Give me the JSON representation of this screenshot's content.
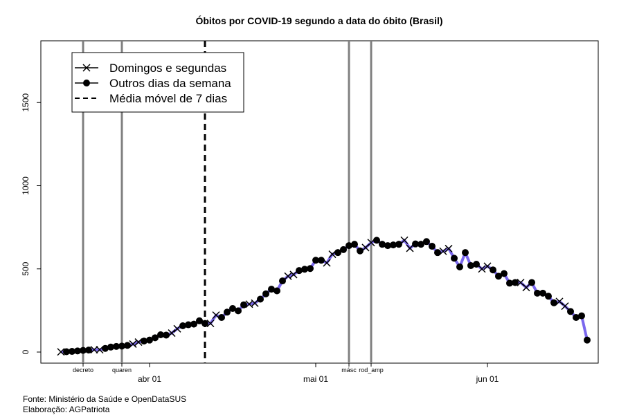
{
  "chart_data": {
    "type": "line",
    "title": "Óbitos por COVID-19 segundo a data do óbito (Brasil)",
    "xlabel": "",
    "ylabel": "",
    "ylim": [
      0,
      1800
    ],
    "yticks": [
      0,
      500,
      1000,
      1500
    ],
    "xlim": [
      "2020-03-10",
      "2020-06-16"
    ],
    "xticks": [
      {
        "date": "2020-04-01",
        "label": "abr 01"
      },
      {
        "date": "2020-05-01",
        "label": "mai 01"
      },
      {
        "date": "2020-06-01",
        "label": "jun 01"
      }
    ],
    "grid": false,
    "legend_position": "top-left",
    "legend": [
      {
        "label": "Domingos e segundas",
        "marker": "x"
      },
      {
        "label": "Outros dias da semana",
        "marker": "dot"
      },
      {
        "label": "Média móvel de 7 dias",
        "marker": "dashed"
      }
    ],
    "events": [
      {
        "date": "2020-03-20",
        "label": "decreto"
      },
      {
        "date": "2020-03-27",
        "label": "quaren"
      },
      {
        "date": "2020-05-07",
        "label": "másc"
      },
      {
        "date": "2020-05-11",
        "label": "rod_amp"
      }
    ],
    "dashed_vline_date": "2020-04-11",
    "series": [
      {
        "line_color": "#7b68ee",
        "points": [
          {
            "date": "2020-03-16",
            "value": 1,
            "marker": "x"
          },
          {
            "date": "2020-03-17",
            "value": 2,
            "marker": "dot"
          },
          {
            "date": "2020-03-18",
            "value": 4,
            "marker": "dot"
          },
          {
            "date": "2020-03-19",
            "value": 7,
            "marker": "dot"
          },
          {
            "date": "2020-03-20",
            "value": 10,
            "marker": "dot"
          },
          {
            "date": "2020-03-21",
            "value": 12,
            "marker": "dot"
          },
          {
            "date": "2020-03-22",
            "value": 14,
            "marker": "x"
          },
          {
            "date": "2020-03-23",
            "value": 14,
            "marker": "x"
          },
          {
            "date": "2020-03-24",
            "value": 22,
            "marker": "dot"
          },
          {
            "date": "2020-03-25",
            "value": 30,
            "marker": "dot"
          },
          {
            "date": "2020-03-26",
            "value": 34,
            "marker": "dot"
          },
          {
            "date": "2020-03-27",
            "value": 36,
            "marker": "dot"
          },
          {
            "date": "2020-03-28",
            "value": 40,
            "marker": "dot"
          },
          {
            "date": "2020-03-29",
            "value": 48,
            "marker": "x"
          },
          {
            "date": "2020-03-30",
            "value": 60,
            "marker": "x"
          },
          {
            "date": "2020-03-31",
            "value": 66,
            "marker": "dot"
          },
          {
            "date": "2020-04-01",
            "value": 72,
            "marker": "dot"
          },
          {
            "date": "2020-04-02",
            "value": 86,
            "marker": "dot"
          },
          {
            "date": "2020-04-03",
            "value": 104,
            "marker": "dot"
          },
          {
            "date": "2020-04-04",
            "value": 102,
            "marker": "dot"
          },
          {
            "date": "2020-04-05",
            "value": 114,
            "marker": "x"
          },
          {
            "date": "2020-04-06",
            "value": 140,
            "marker": "x"
          },
          {
            "date": "2020-04-07",
            "value": 158,
            "marker": "dot"
          },
          {
            "date": "2020-04-08",
            "value": 164,
            "marker": "dot"
          },
          {
            "date": "2020-04-09",
            "value": 168,
            "marker": "dot"
          },
          {
            "date": "2020-04-10",
            "value": 188,
            "marker": "dot"
          },
          {
            "date": "2020-04-11",
            "value": 172,
            "marker": "dot"
          },
          {
            "date": "2020-04-12",
            "value": 172,
            "marker": "x"
          },
          {
            "date": "2020-04-13",
            "value": 222,
            "marker": "x"
          },
          {
            "date": "2020-04-14",
            "value": 208,
            "marker": "dot"
          },
          {
            "date": "2020-04-15",
            "value": 240,
            "marker": "dot"
          },
          {
            "date": "2020-04-16",
            "value": 262,
            "marker": "dot"
          },
          {
            "date": "2020-04-17",
            "value": 248,
            "marker": "dot"
          },
          {
            "date": "2020-04-18",
            "value": 284,
            "marker": "dot"
          },
          {
            "date": "2020-04-19",
            "value": 288,
            "marker": "x"
          },
          {
            "date": "2020-04-20",
            "value": 294,
            "marker": "x"
          },
          {
            "date": "2020-04-21",
            "value": 318,
            "marker": "dot"
          },
          {
            "date": "2020-04-22",
            "value": 350,
            "marker": "dot"
          },
          {
            "date": "2020-04-23",
            "value": 378,
            "marker": "dot"
          },
          {
            "date": "2020-04-24",
            "value": 368,
            "marker": "dot"
          },
          {
            "date": "2020-04-25",
            "value": 428,
            "marker": "dot"
          },
          {
            "date": "2020-04-26",
            "value": 456,
            "marker": "x"
          },
          {
            "date": "2020-04-27",
            "value": 466,
            "marker": "x"
          },
          {
            "date": "2020-04-28",
            "value": 490,
            "marker": "dot"
          },
          {
            "date": "2020-04-29",
            "value": 498,
            "marker": "dot"
          },
          {
            "date": "2020-04-30",
            "value": 502,
            "marker": "dot"
          },
          {
            "date": "2020-05-01",
            "value": 552,
            "marker": "dot"
          },
          {
            "date": "2020-05-02",
            "value": 552,
            "marker": "dot"
          },
          {
            "date": "2020-05-03",
            "value": 536,
            "marker": "x"
          },
          {
            "date": "2020-05-04",
            "value": 588,
            "marker": "x"
          },
          {
            "date": "2020-05-05",
            "value": 598,
            "marker": "dot"
          },
          {
            "date": "2020-05-06",
            "value": 616,
            "marker": "dot"
          },
          {
            "date": "2020-05-07",
            "value": 640,
            "marker": "dot"
          },
          {
            "date": "2020-05-08",
            "value": 648,
            "marker": "dot"
          },
          {
            "date": "2020-05-09",
            "value": 608,
            "marker": "dot"
          },
          {
            "date": "2020-05-10",
            "value": 628,
            "marker": "x"
          },
          {
            "date": "2020-05-11",
            "value": 658,
            "marker": "x"
          },
          {
            "date": "2020-05-12",
            "value": 672,
            "marker": "dot"
          },
          {
            "date": "2020-05-13",
            "value": 648,
            "marker": "dot"
          },
          {
            "date": "2020-05-14",
            "value": 640,
            "marker": "dot"
          },
          {
            "date": "2020-05-15",
            "value": 644,
            "marker": "dot"
          },
          {
            "date": "2020-05-16",
            "value": 648,
            "marker": "dot"
          },
          {
            "date": "2020-05-17",
            "value": 672,
            "marker": "x"
          },
          {
            "date": "2020-05-18",
            "value": 624,
            "marker": "x"
          },
          {
            "date": "2020-05-19",
            "value": 650,
            "marker": "dot"
          },
          {
            "date": "2020-05-20",
            "value": 648,
            "marker": "dot"
          },
          {
            "date": "2020-05-21",
            "value": 664,
            "marker": "dot"
          },
          {
            "date": "2020-05-22",
            "value": 636,
            "marker": "dot"
          },
          {
            "date": "2020-05-23",
            "value": 598,
            "marker": "dot"
          },
          {
            "date": "2020-05-24",
            "value": 606,
            "marker": "x"
          },
          {
            "date": "2020-05-25",
            "value": 622,
            "marker": "x"
          },
          {
            "date": "2020-05-26",
            "value": 564,
            "marker": "dot"
          },
          {
            "date": "2020-05-27",
            "value": 512,
            "marker": "dot"
          },
          {
            "date": "2020-05-28",
            "value": 598,
            "marker": "dot"
          },
          {
            "date": "2020-05-29",
            "value": 520,
            "marker": "dot"
          },
          {
            "date": "2020-05-30",
            "value": 528,
            "marker": "dot"
          },
          {
            "date": "2020-05-31",
            "value": 500,
            "marker": "x"
          },
          {
            "date": "2020-06-01",
            "value": 516,
            "marker": "x"
          },
          {
            "date": "2020-06-02",
            "value": 494,
            "marker": "dot"
          },
          {
            "date": "2020-06-03",
            "value": 456,
            "marker": "dot"
          },
          {
            "date": "2020-06-04",
            "value": 472,
            "marker": "dot"
          },
          {
            "date": "2020-06-05",
            "value": 414,
            "marker": "dot"
          },
          {
            "date": "2020-06-06",
            "value": 418,
            "marker": "dot"
          },
          {
            "date": "2020-06-07",
            "value": 418,
            "marker": "x"
          },
          {
            "date": "2020-06-08",
            "value": 388,
            "marker": "x"
          },
          {
            "date": "2020-06-09",
            "value": 418,
            "marker": "dot"
          },
          {
            "date": "2020-06-10",
            "value": 354,
            "marker": "dot"
          },
          {
            "date": "2020-06-11",
            "value": 354,
            "marker": "dot"
          },
          {
            "date": "2020-06-12",
            "value": 336,
            "marker": "dot"
          },
          {
            "date": "2020-06-13",
            "value": 296,
            "marker": "dot"
          },
          {
            "date": "2020-06-14",
            "value": 304,
            "marker": "x"
          },
          {
            "date": "2020-06-15",
            "value": 276,
            "marker": "x"
          },
          {
            "date": "2020-06-16",
            "value": 244,
            "marker": "dot"
          },
          {
            "date": "2020-06-17",
            "value": 208,
            "marker": "dot"
          },
          {
            "date": "2020-06-18",
            "value": 218,
            "marker": "dot"
          },
          {
            "date": "2020-06-19",
            "value": 72,
            "marker": "dot"
          }
        ]
      }
    ]
  },
  "footer": {
    "source": "Fonte: Ministério da Saúde e OpenDataSUS",
    "credit": "Elaboração: AGPatriota"
  }
}
